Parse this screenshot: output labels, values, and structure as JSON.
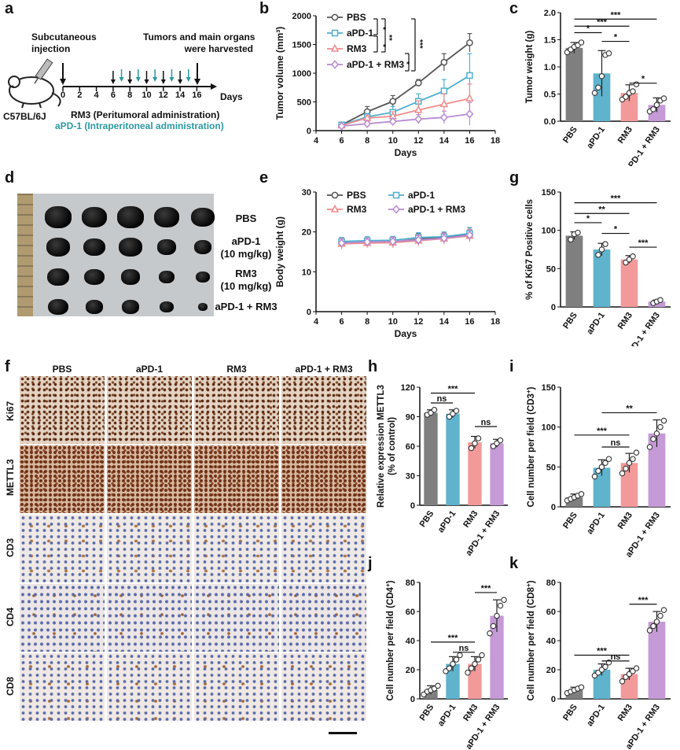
{
  "panel_letters": [
    "a",
    "b",
    "c",
    "d",
    "e",
    "f",
    "g",
    "h",
    "i",
    "j",
    "k"
  ],
  "schematic": {
    "injection_label": "Subcutaneous\ninjection",
    "harvest_label": "Tumors and main organs\nwere harvested",
    "strain_label": "C57BL/6J",
    "days_label": "Days",
    "day_ticks": [
      "0",
      "2",
      "4",
      "6",
      "8",
      "10",
      "12",
      "14",
      "16"
    ],
    "rm3_admin": "RM3 (Peritumoral administration)",
    "apd1_admin": "aPD-1 (Intraperitoneal administration)",
    "apd1_color": "#2a9aa0"
  },
  "photo_panel": {
    "labels": [
      "PBS",
      "aPD-1\n(10 mg/kg)",
      "RM3\n(10 mg/kg)",
      "aPD-1 + RM3"
    ]
  },
  "ihc_panel": {
    "columns": [
      "PBS",
      "aPD-1",
      "RM3",
      "aPD-1 + RM3"
    ],
    "rows": [
      "Ki67",
      "METTL3",
      "CD3",
      "CD4",
      "CD8"
    ]
  },
  "colors": {
    "PBS": "#7f7f7f",
    "aPD-1": "#5fb3cc",
    "RM3": "#f29a9a",
    "aPD-1 + RM3": "#c59ad6",
    "line_PBS": "#555555",
    "line_aPD1": "#4fb0d0",
    "line_RM3": "#f08c8c",
    "line_combo": "#b98ad0"
  },
  "chart_data": [
    {
      "id": "b",
      "type": "line",
      "ylabel": "Tumor volume (mm³)",
      "xlabel": "Days",
      "xlim": [
        4,
        18
      ],
      "ylim": [
        0,
        2000
      ],
      "xticks": [
        4,
        6,
        8,
        10,
        12,
        14,
        16,
        18
      ],
      "yticks": [
        0,
        500,
        1000,
        1500,
        2000
      ],
      "x": [
        6,
        8,
        10,
        12,
        14,
        16
      ],
      "series": [
        {
          "name": "PBS",
          "values": [
            100,
            330,
            510,
            830,
            1190,
            1530
          ],
          "err": [
            20,
            90,
            100,
            60,
            150,
            160
          ]
        },
        {
          "name": "aPD-1",
          "values": [
            100,
            240,
            320,
            510,
            690,
            960
          ],
          "err": [
            20,
            60,
            100,
            130,
            200,
            380
          ]
        },
        {
          "name": "RM3",
          "values": [
            90,
            220,
            250,
            360,
            460,
            560
          ],
          "err": [
            20,
            40,
            80,
            160,
            180,
            250
          ]
        },
        {
          "name": "aPD-1 + RM3",
          "values": [
            80,
            120,
            160,
            200,
            230,
            290
          ],
          "err": [
            20,
            40,
            50,
            80,
            110,
            200
          ]
        }
      ],
      "significance": [
        "*",
        "**",
        "***",
        "*",
        "*",
        "***"
      ]
    },
    {
      "id": "c",
      "type": "bar",
      "ylabel": "Tumor weight (g)",
      "categories": [
        "PBS",
        "aPD-1",
        "RM3",
        "aPD-1 + RM3"
      ],
      "values": [
        1.35,
        0.88,
        0.52,
        0.3
      ],
      "err": [
        0.1,
        0.42,
        0.15,
        0.13
      ],
      "ylim": [
        0,
        2.0
      ],
      "yticks": [
        "0.0",
        "0.5",
        "1.0",
        "1.5",
        "2.0"
      ],
      "points": [
        [
          1.27,
          1.32,
          1.37,
          1.4,
          1.45
        ],
        [
          0.52,
          0.62,
          0.83,
          1.22,
          1.25
        ],
        [
          0.4,
          0.45,
          0.52,
          0.55,
          0.68
        ],
        [
          0.18,
          0.22,
          0.3,
          0.38,
          0.42
        ]
      ],
      "significance": [
        "*",
        "***",
        "***",
        "*",
        "*"
      ]
    },
    {
      "id": "e",
      "type": "line",
      "ylabel": "Body weight (g)",
      "xlabel": "Days",
      "xlim": [
        4,
        18
      ],
      "ylim": [
        0,
        30
      ],
      "xticks": [
        4,
        6,
        8,
        10,
        12,
        14,
        16,
        18
      ],
      "yticks": [
        0,
        10,
        20,
        30
      ],
      "x": [
        6,
        8,
        10,
        12,
        14,
        16
      ],
      "series": [
        {
          "name": "PBS",
          "values": [
            17.3,
            17.4,
            17.5,
            18.2,
            18.6,
            19.4
          ],
          "err": [
            1.2,
            1.0,
            1.2,
            1.4,
            1.3,
            1.6
          ]
        },
        {
          "name": "aPD-1",
          "values": [
            17.6,
            17.8,
            17.9,
            18.6,
            18.8,
            19.6
          ],
          "err": [
            1.0,
            1.0,
            1.0,
            1.2,
            1.2,
            1.5
          ]
        },
        {
          "name": "RM3",
          "values": [
            17.0,
            17.2,
            17.3,
            17.8,
            18.3,
            19.0
          ],
          "err": [
            1.3,
            1.2,
            1.3,
            1.3,
            1.4,
            1.5
          ]
        },
        {
          "name": "aPD-1 + RM3",
          "values": [
            17.2,
            17.5,
            17.6,
            18.0,
            18.4,
            19.2
          ],
          "err": [
            1.0,
            1.0,
            1.1,
            1.2,
            1.2,
            1.4
          ]
        }
      ]
    },
    {
      "id": "g",
      "type": "bar",
      "ylabel": "% of Ki67 Positive cells",
      "categories": [
        "PBS",
        "aPD-1",
        "RM3",
        "aPD-1 + RM3"
      ],
      "values": [
        93,
        75,
        62,
        7
      ],
      "err": [
        5,
        8,
        5,
        2
      ],
      "ylim": [
        0,
        150
      ],
      "yticks": [
        "0",
        "50",
        "100",
        "150"
      ],
      "points": [
        [
          88,
          95,
          97
        ],
        [
          68,
          75,
          82
        ],
        [
          58,
          62,
          66
        ],
        [
          5,
          7,
          9
        ]
      ],
      "significance": [
        "*",
        "**",
        "***",
        "*",
        "***"
      ]
    },
    {
      "id": "h",
      "type": "bar",
      "ylabel": "Relative expression METTL3",
      "ylabel2": "(% of control)",
      "categories": [
        "PBS",
        "aPD-1",
        "RM3",
        "aPD-1 + RM3"
      ],
      "values": [
        94,
        93,
        64,
        63
      ],
      "err": [
        3,
        4,
        6,
        4
      ],
      "ylim": [
        0,
        120
      ],
      "yticks": [
        "0",
        "30",
        "60",
        "90",
        "120"
      ],
      "points": [
        [
          92,
          94,
          97
        ],
        [
          90,
          93,
          96
        ],
        [
          58,
          63,
          68
        ],
        [
          60,
          63,
          66
        ]
      ],
      "significance": [
        "ns",
        "***",
        "ns"
      ]
    },
    {
      "id": "i",
      "type": "bar",
      "ylabel": "Cell number per field (CD3",
      "ylabel_sup": "+",
      "categories": [
        "PBS",
        "aPD-1",
        "RM3",
        "aPD-1 + RM3"
      ],
      "values": [
        12,
        49,
        55,
        92
      ],
      "err": [
        4,
        10,
        12,
        17
      ],
      "ylim": [
        0,
        150
      ],
      "yticks": [
        "0",
        "50",
        "100",
        "150"
      ],
      "points": [
        [
          8,
          10,
          12,
          14,
          16
        ],
        [
          38,
          45,
          50,
          55,
          60
        ],
        [
          42,
          48,
          55,
          60,
          68
        ],
        [
          75,
          85,
          92,
          100,
          108
        ]
      ],
      "significance": [
        "***",
        "ns",
        "**"
      ]
    },
    {
      "id": "j",
      "type": "bar",
      "ylabel": "Cell number per field (CD4",
      "ylabel_sup": "+",
      "categories": [
        "PBS",
        "aPD-1",
        "RM3",
        "aPD-1 + RM3"
      ],
      "values": [
        6,
        24,
        24,
        57
      ],
      "err": [
        3,
        5,
        5,
        11
      ],
      "ylim": [
        0,
        80
      ],
      "yticks": [
        "0",
        "20",
        "40",
        "60",
        "80"
      ],
      "points": [
        [
          3,
          5,
          6,
          7,
          9
        ],
        [
          19,
          21,
          24,
          27,
          30
        ],
        [
          18,
          21,
          24,
          27,
          30
        ],
        [
          45,
          50,
          57,
          64,
          68
        ]
      ],
      "significance": [
        "***",
        "ns",
        "***"
      ]
    },
    {
      "id": "k",
      "type": "bar",
      "ylabel": "Cell number per field (CD8",
      "ylabel_sup": "+",
      "categories": [
        "PBS",
        "aPD-1",
        "RM3",
        "aPD-1 + RM3"
      ],
      "values": [
        6,
        20,
        17,
        53
      ],
      "err": [
        2,
        4,
        4,
        7
      ],
      "ylim": [
        0,
        80
      ],
      "yticks": [
        "0",
        "20",
        "40",
        "60",
        "80"
      ],
      "points": [
        [
          4,
          5,
          6,
          7,
          8
        ],
        [
          16,
          18,
          20,
          22,
          25
        ],
        [
          12,
          15,
          17,
          19,
          21
        ],
        [
          47,
          50,
          53,
          57,
          61
        ]
      ],
      "significance": [
        "***",
        "ns",
        "***"
      ]
    }
  ]
}
